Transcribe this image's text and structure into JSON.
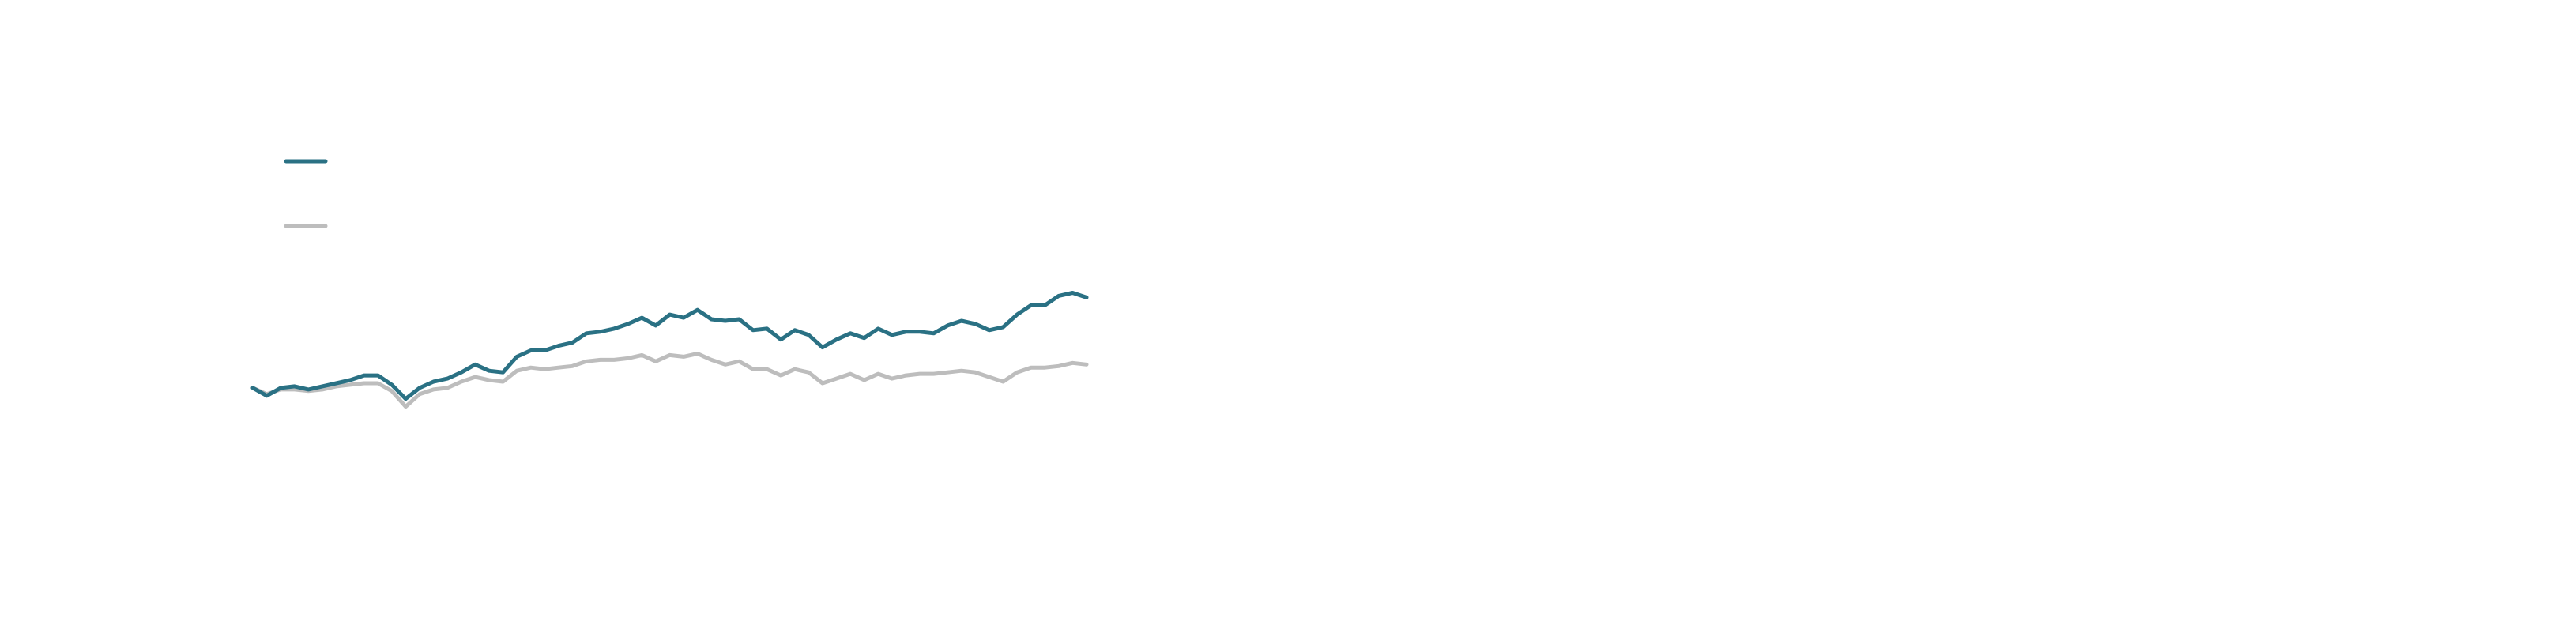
{
  "colors": {
    "background": "#ffffff",
    "series_primary": "#2a7184",
    "series_secondary": "#bdbdbd"
  },
  "chart_data": {
    "type": "line",
    "title": "",
    "xlabel": "",
    "ylabel": "",
    "grid": false,
    "legend": "top-left",
    "ylim": [
      -35,
      160
    ],
    "x": [
      0,
      1,
      2,
      3,
      4,
      5,
      6,
      7,
      8,
      9,
      10,
      11,
      12,
      13,
      14,
      15,
      16,
      17,
      18,
      19,
      20,
      21,
      22,
      23,
      24,
      25,
      26,
      27,
      28,
      29,
      30,
      31,
      32,
      33,
      34,
      35,
      36,
      37,
      38,
      39,
      40,
      41,
      42,
      43,
      44,
      45,
      46,
      47,
      48,
      49,
      50,
      51,
      52,
      53,
      54,
      55,
      56,
      57,
      58,
      59,
      60
    ],
    "series": [
      {
        "color": "#2a7184",
        "values": [
          0,
          -5,
          0,
          1,
          -1,
          1,
          3,
          5,
          8,
          8,
          2,
          -7,
          0,
          4,
          6,
          10,
          15,
          11,
          10,
          20,
          24,
          24,
          27,
          29,
          35,
          36,
          38,
          41,
          45,
          40,
          47,
          45,
          50,
          44,
          43,
          44,
          37,
          38,
          31,
          37,
          34,
          26,
          31,
          35,
          32,
          38,
          34,
          36,
          36,
          35,
          40,
          43,
          41,
          37,
          39,
          47,
          53,
          53,
          59,
          61,
          58
        ]
      },
      {
        "color": "#bdbdbd",
        "values": [
          0,
          -4,
          -1,
          -1,
          -2,
          -1,
          1,
          2,
          3,
          3,
          -2,
          -12,
          -4,
          -1,
          0,
          4,
          7,
          5,
          4,
          11,
          13,
          12,
          13,
          14,
          17,
          18,
          18,
          19,
          21,
          17,
          21,
          20,
          22,
          18,
          15,
          17,
          12,
          12,
          8,
          12,
          10,
          3,
          6,
          9,
          5,
          9,
          6,
          8,
          9,
          9,
          10,
          11,
          10,
          7,
          4,
          10,
          13,
          13,
          14,
          16,
          15
        ]
      }
    ]
  }
}
